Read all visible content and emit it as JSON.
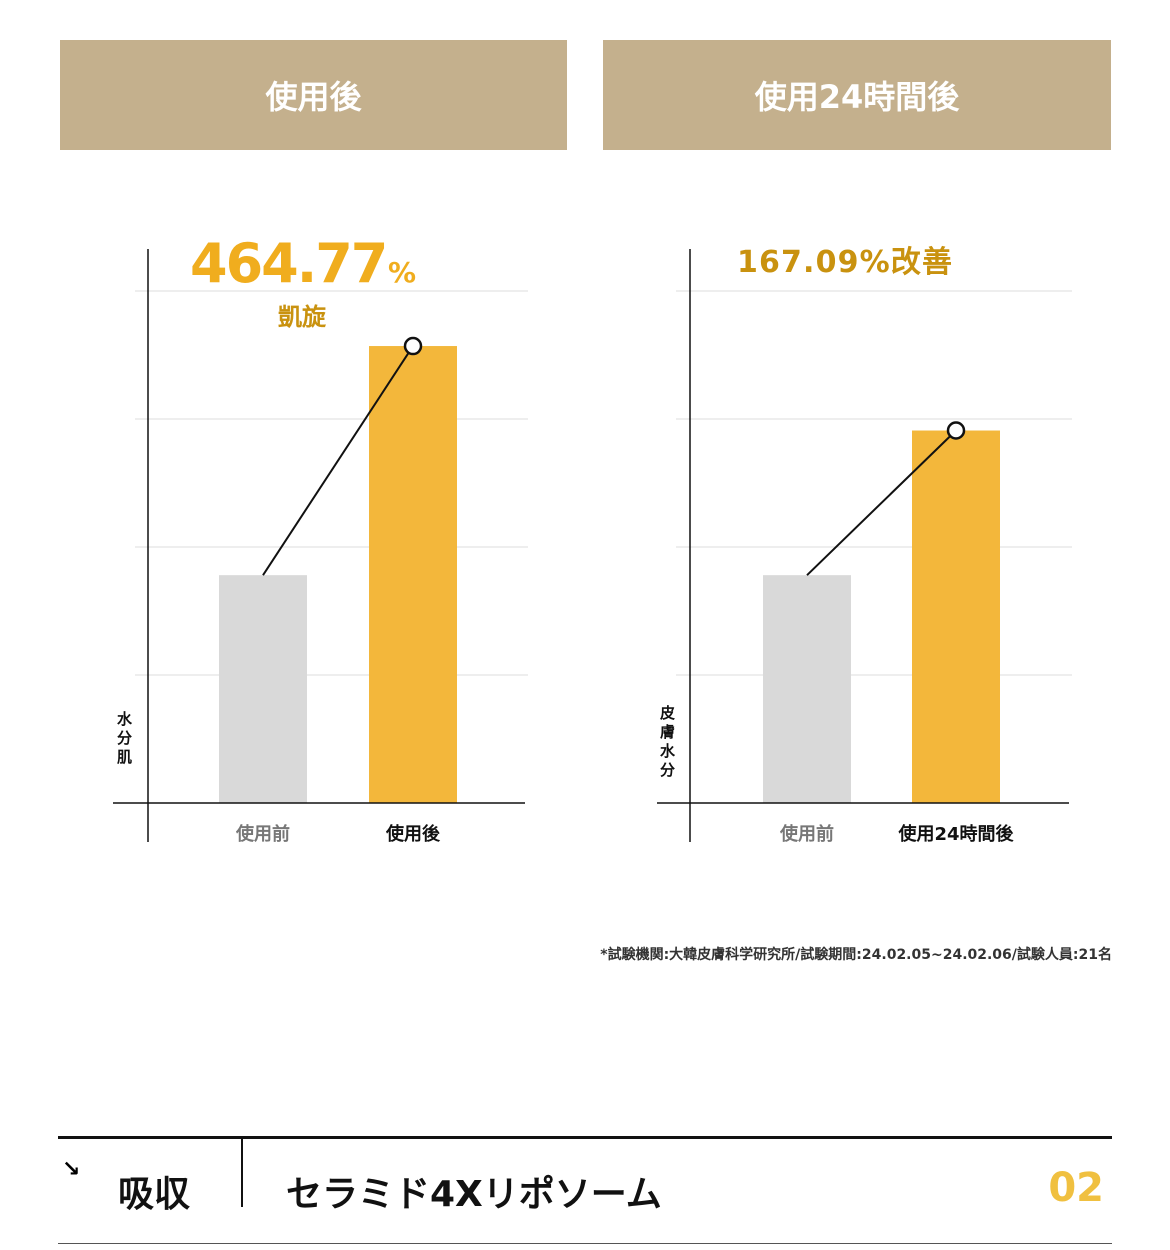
{
  "headers": [
    "使用後",
    "使用24時間後"
  ],
  "colors": {
    "header": "#c4b08d",
    "before": "#d9d9d9",
    "after": "#f3b73b",
    "highlight": "#f0ad1e",
    "highlight_dark": "#c9920f"
  },
  "chart_data": [
    {
      "type": "bar",
      "categories": [
        "使用前",
        "使用後"
      ],
      "values": [
        1.78,
        3.57
      ],
      "ylabel": "水分肌",
      "ylim": [
        0,
        4.4
      ],
      "grid": true,
      "annotation": {
        "value": "464.77",
        "unit": "%",
        "sub": "凱旋"
      }
    },
    {
      "type": "bar",
      "categories": [
        "使用前",
        "使用24時間後"
      ],
      "values": [
        1.78,
        2.91
      ],
      "ylabel": "皮膚水分",
      "ylim": [
        0,
        4.4
      ],
      "grid": true,
      "annotation": {
        "value": "167.09%改善"
      }
    }
  ],
  "note": "*試験機関:大韓皮膚科学研究所/試験期間:24.02.05~24.02.06/試験人員:21名",
  "section": {
    "arrow": "↘",
    "category": "吸収",
    "title": "セラミド4Xリポソーム",
    "number": "02"
  }
}
